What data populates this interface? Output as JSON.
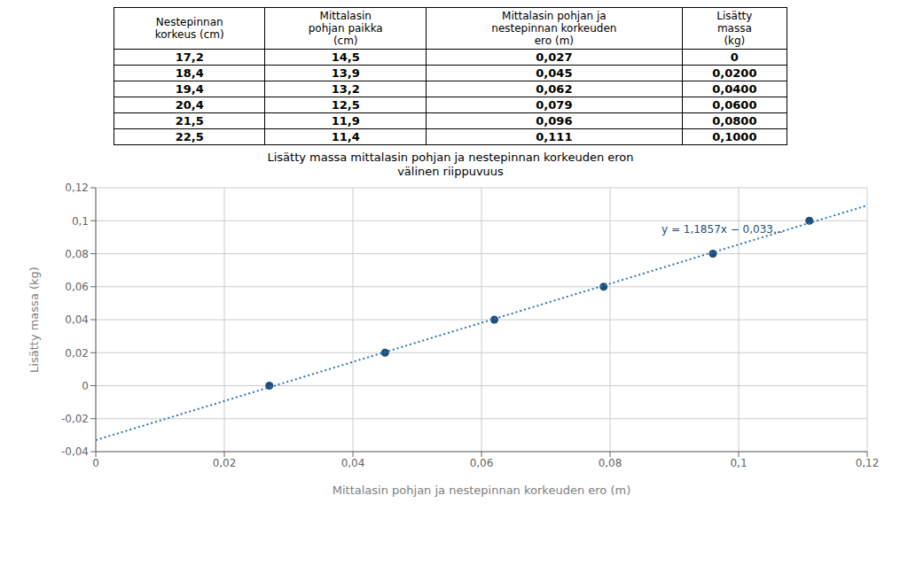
{
  "chart_data": [
    {
      "type": "table",
      "headers": [
        "Nestepinnan\nkorkeus (cm)",
        "Mittalasin\npohjan paikka\n(cm)",
        "Mittalasin pohjan ja\nnestepinnan korkeuden\nero (m)",
        "Lisätty\nmassa\n(kg)"
      ],
      "rows": [
        [
          "17,2",
          "14,5",
          "0,027",
          "0"
        ],
        [
          "18,4",
          "13,9",
          "0,045",
          "0,0200"
        ],
        [
          "19,4",
          "13,2",
          "0,062",
          "0,0400"
        ],
        [
          "20,4",
          "12,5",
          "0,079",
          "0,0600"
        ],
        [
          "21,5",
          "11,9",
          "0,096",
          "0,0800"
        ],
        [
          "22,5",
          "11,4",
          "0,111",
          "0,1000"
        ]
      ]
    },
    {
      "type": "scatter",
      "title": "Lisätty massa mittalasin pohjan ja nestepinnan korkeuden eron\nvälinen riippuvuus",
      "xlabel": "Mittalasin pohjan ja nestepinnan korkeuden ero (m)",
      "ylabel": "Lisätty massa (kg)",
      "xlim": [
        0,
        0.12
      ],
      "ylim": [
        -0.04,
        0.12
      ],
      "xticks": [
        0,
        {
          "value": 0.02,
          "label": "0,02"
        },
        {
          "value": 0.04,
          "label": "0,04"
        },
        {
          "value": 0.06,
          "label": "0,06"
        },
        {
          "value": 0.08,
          "label": "0,08"
        },
        {
          "value": 0.1,
          "label": "0,1"
        },
        {
          "value": 0.12,
          "label": "0,12"
        }
      ],
      "yticks": [
        {
          "value": -0.04,
          "label": "-0,04"
        },
        {
          "value": -0.02,
          "label": "-0,02"
        },
        0,
        {
          "value": 0.02,
          "label": "0,02"
        },
        {
          "value": 0.04,
          "label": "0,04"
        },
        {
          "value": 0.06,
          "label": "0,06"
        },
        {
          "value": 0.08,
          "label": "0,08"
        },
        {
          "value": 0.1,
          "label": "0,1"
        },
        {
          "value": 0.12,
          "label": "0,12"
        }
      ],
      "grid": true,
      "series": [
        {
          "type": "scatter",
          "color": "#1F4E79",
          "marker": "circle",
          "x": [
            0.027,
            0.045,
            0.062,
            0.079,
            0.096,
            0.111
          ],
          "values": [
            0,
            0.02,
            0.04,
            0.06,
            0.08,
            0.1
          ]
        },
        {
          "type": "line",
          "color": "#2E75B6",
          "line_style": "dotted",
          "x": [
            0,
            0.12
          ],
          "values": [
            -0.033,
            0.109284
          ]
        }
      ],
      "annotations": [
        {
          "text": "y = 1,1857x − 0,033...",
          "x": 0.088,
          "y": 0.099,
          "color": "#1F4E79"
        }
      ]
    }
  ]
}
